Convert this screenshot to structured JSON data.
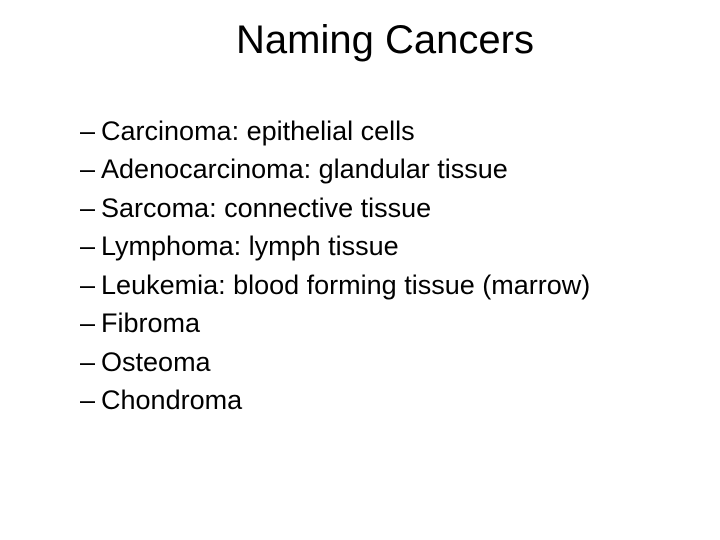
{
  "slide": {
    "title": "Naming Cancers",
    "title_fontsize": 40,
    "body_fontsize": 27,
    "background_color": "#ffffff",
    "text_color": "#000000",
    "font_family": "Arial",
    "bullets": [
      "Carcinoma: epithelial cells",
      "Adenocarcinoma: glandular tissue",
      "Sarcoma: connective tissue",
      "Lymphoma: lymph tissue",
      "Leukemia: blood forming tissue (marrow)",
      "Fibroma",
      "Osteoma",
      "Chondroma"
    ]
  }
}
